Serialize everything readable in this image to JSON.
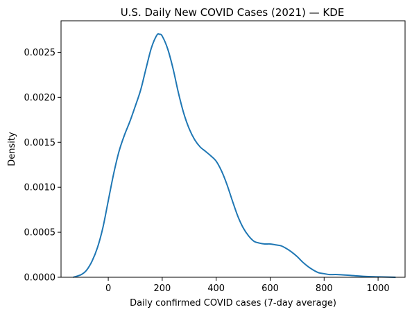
{
  "chart_data": {
    "type": "line",
    "title": "U.S. Daily New COVID Cases (2021) — KDE",
    "xlabel": "Daily confirmed COVID cases (7-day average)",
    "ylabel": "Density",
    "xlim": [
      -175,
      1100
    ],
    "ylim": [
      0,
      0.00285
    ],
    "x_ticks": [
      0,
      200,
      400,
      600,
      800,
      1000
    ],
    "x_tick_labels": [
      "0",
      "200",
      "400",
      "600",
      "800",
      "1000"
    ],
    "y_ticks": [
      0,
      0.0005,
      0.001,
      0.0015,
      0.002,
      0.0025
    ],
    "y_tick_labels": [
      "0.0000",
      "0.0005",
      "0.0010",
      "0.0015",
      "0.0020",
      "0.0025"
    ],
    "grid": false,
    "legend": "none",
    "series": [
      {
        "color": "#1f77b4",
        "x": [
          -130,
          -100,
          -80,
          -60,
          -40,
          -20,
          0,
          20,
          40,
          60,
          80,
          100,
          120,
          140,
          160,
          180,
          190,
          200,
          220,
          240,
          260,
          280,
          300,
          320,
          340,
          360,
          380,
          400,
          420,
          440,
          460,
          480,
          500,
          520,
          540,
          560,
          580,
          600,
          620,
          640,
          660,
          680,
          700,
          720,
          740,
          760,
          780,
          800,
          820,
          850,
          900,
          950,
          1000,
          1065
        ],
        "y": [
          0.0,
          3e-05,
          8e-05,
          0.00018,
          0.00033,
          0.00055,
          0.00085,
          0.00115,
          0.0014,
          0.00158,
          0.00173,
          0.0019,
          0.00208,
          0.00232,
          0.00255,
          0.00269,
          0.0027,
          0.00268,
          0.00254,
          0.00232,
          0.00205,
          0.00182,
          0.00165,
          0.00153,
          0.00145,
          0.0014,
          0.00135,
          0.00129,
          0.00118,
          0.00103,
          0.00085,
          0.00068,
          0.00055,
          0.00046,
          0.0004,
          0.00038,
          0.00037,
          0.00037,
          0.00036,
          0.00035,
          0.00032,
          0.00028,
          0.00023,
          0.00017,
          0.00012,
          8e-05,
          5e-05,
          4e-05,
          3e-05,
          3e-05,
          2e-05,
          1e-05,
          5e-06,
          0.0
        ]
      }
    ]
  }
}
